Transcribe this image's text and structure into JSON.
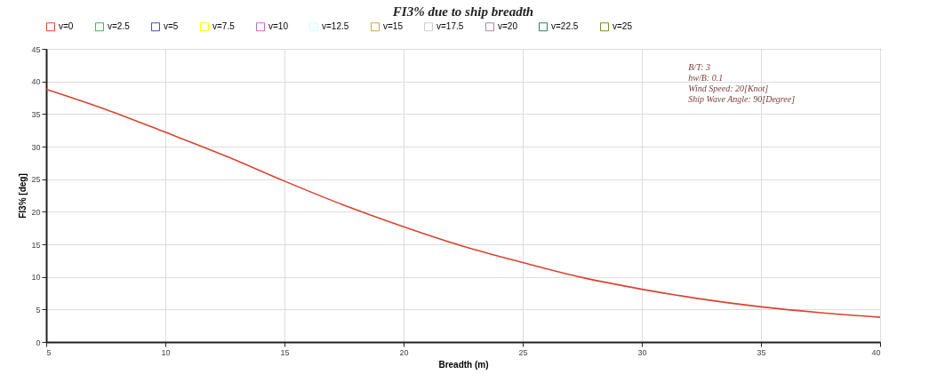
{
  "chart_data": {
    "type": "line",
    "title": "FI3% due to ship breadth",
    "xlabel": "Breadth (m)",
    "ylabel": "FI3% [deg]",
    "x": [
      5,
      7.5,
      10,
      12.5,
      15,
      17.5,
      20,
      22.5,
      25,
      27.5,
      30,
      32.5,
      35,
      37.5,
      40
    ],
    "series": [
      {
        "name": "v=0",
        "color": "#d9432f",
        "values": [
          38.8,
          35.7,
          32.2,
          28.6,
          24.7,
          21.0,
          17.7,
          14.7,
          12.2,
          9.9,
          8.1,
          6.6,
          5.4,
          4.5,
          3.8
        ]
      },
      {
        "name": "v=2.5",
        "color": "#4caf50",
        "values": [
          null,
          null,
          null,
          null,
          null,
          null,
          null,
          null,
          null,
          null,
          null,
          null,
          null,
          null,
          null
        ]
      },
      {
        "name": "v=5",
        "color": "#4b4ba0",
        "values": [
          null,
          null,
          null,
          null,
          null,
          null,
          null,
          null,
          null,
          null,
          null,
          null,
          null,
          null,
          null
        ]
      },
      {
        "name": "v=7.5",
        "color": "#ffff00",
        "values": [
          null,
          null,
          null,
          null,
          null,
          null,
          null,
          null,
          null,
          null,
          null,
          null,
          null,
          null,
          null
        ]
      },
      {
        "name": "v=10",
        "color": "#cc66cc",
        "values": [
          null,
          null,
          null,
          null,
          null,
          null,
          null,
          null,
          null,
          null,
          null,
          null,
          null,
          null,
          null
        ]
      },
      {
        "name": "v=12.5",
        "color": "#ccffff",
        "values": [
          null,
          null,
          null,
          null,
          null,
          null,
          null,
          null,
          null,
          null,
          null,
          null,
          null,
          null,
          null
        ]
      },
      {
        "name": "v=15",
        "color": "#ccaa33",
        "values": [
          null,
          null,
          null,
          null,
          null,
          null,
          null,
          null,
          null,
          null,
          null,
          null,
          null,
          null,
          null
        ]
      },
      {
        "name": "v=17.5",
        "color": "#cccccc",
        "values": [
          null,
          null,
          null,
          null,
          null,
          null,
          null,
          null,
          null,
          null,
          null,
          null,
          null,
          null,
          null
        ]
      },
      {
        "name": "v=20",
        "color": "#aa8899",
        "values": [
          null,
          null,
          null,
          null,
          null,
          null,
          null,
          null,
          null,
          null,
          null,
          null,
          null,
          null,
          null
        ]
      },
      {
        "name": "v=22.5",
        "color": "#2e7d5b",
        "values": [
          null,
          null,
          null,
          null,
          null,
          null,
          null,
          null,
          null,
          null,
          null,
          null,
          null,
          null,
          null
        ]
      },
      {
        "name": "v=25",
        "color": "#7a8a20",
        "values": [
          null,
          null,
          null,
          null,
          null,
          null,
          null,
          null,
          null,
          null,
          null,
          null,
          null,
          null,
          null
        ]
      }
    ],
    "xlim": [
      5,
      40
    ],
    "xticks": [
      5,
      10,
      15,
      20,
      25,
      30,
      35,
      40
    ],
    "ylim": [
      0,
      45
    ],
    "yticks": [
      0,
      5,
      10,
      15,
      20,
      25,
      30,
      35,
      40,
      45
    ],
    "grid": true,
    "legend": "top",
    "marker": "none",
    "line_style": "solid",
    "annotations": [
      "B/T: 3",
      "hw/B: 0.1",
      "Wind Speed: 20[Knot]",
      "Ship Wave Angle: 90[Degree]"
    ]
  }
}
